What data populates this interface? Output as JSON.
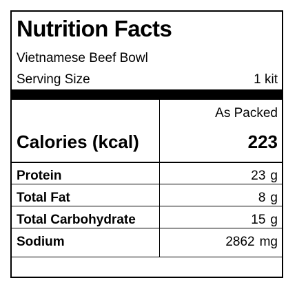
{
  "header": {
    "title": "Nutrition Facts",
    "product": "Vietnamese Beef Bowl",
    "serving_label": "Serving Size",
    "serving_value": "1 kit"
  },
  "column_header": "As Packed",
  "calories": {
    "label": "Calories (kcal)",
    "value": "223"
  },
  "nutrients": [
    {
      "label": "Protein",
      "value": "23",
      "unit": "g"
    },
    {
      "label": "Total Fat",
      "value": "8",
      "unit": "g"
    },
    {
      "label": "Total Carbohydrate",
      "value": "15",
      "unit": "g"
    },
    {
      "label": "Sodium",
      "value": "2862",
      "unit": "mg"
    }
  ]
}
